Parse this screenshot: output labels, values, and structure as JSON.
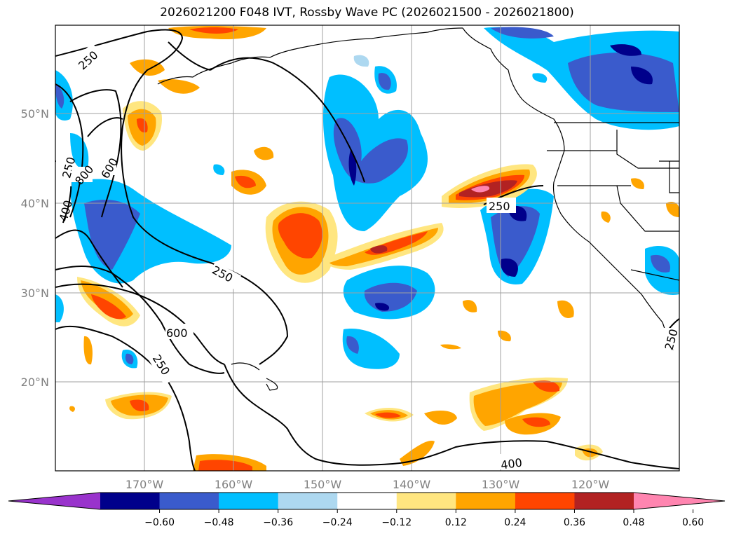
{
  "title": "2026021200 F048 IVT, Rossby Wave PC (2026021500 - 2026021800)",
  "lat_labels": [
    "50°N",
    "40°N",
    "30°N",
    "20°N"
  ],
  "lon_labels": [
    "170°W",
    "160°W",
    "150°W",
    "140°W",
    "130°W",
    "120°W"
  ],
  "colorbar": {
    "tick_labels": [
      "−0.60",
      "−0.48",
      "−0.36",
      "−0.24",
      "−0.12",
      "0.12",
      "0.24",
      "0.36",
      "0.48",
      "0.60"
    ],
    "colors": [
      "#9933cc",
      "#00008b",
      "#3a5bcc",
      "#00bfff",
      "#add8f0",
      "#ffffff",
      "#ffe680",
      "#ffa500",
      "#ff4500",
      "#b22222",
      "#ff85b0"
    ]
  },
  "contour_labels": [
    "250",
    "250",
    "800",
    "600",
    "400",
    "250",
    "600",
    "250",
    "250",
    "400",
    "250"
  ]
}
